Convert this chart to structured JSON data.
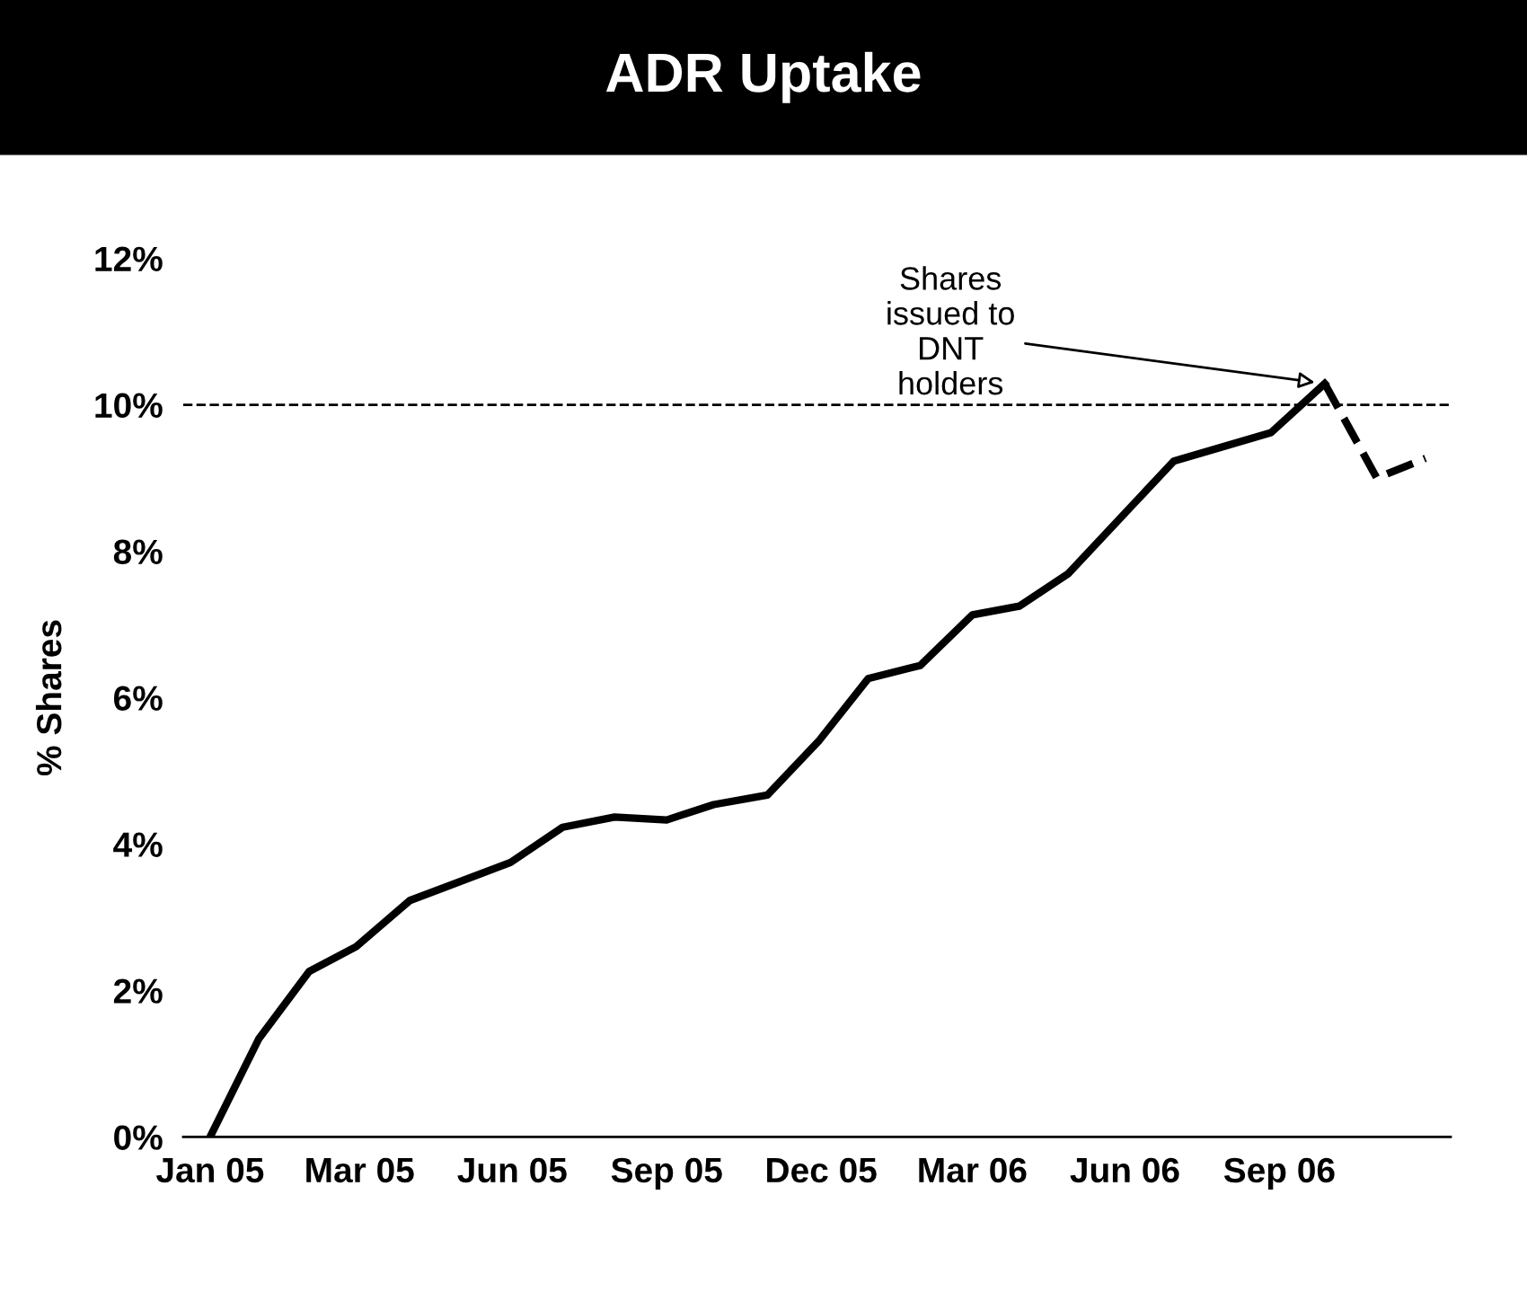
{
  "chart_data": {
    "type": "line",
    "title": "ADR Uptake",
    "ylabel": "% Shares",
    "xlim": [
      "2004-12-16",
      "2007-01-10"
    ],
    "xticks": [
      {
        "value": "2005-01-01",
        "label": "Jan 05"
      },
      {
        "value": "2005-03-31",
        "label": "Mar 05"
      },
      {
        "value": "2005-06-30",
        "label": "Jun 05"
      },
      {
        "value": "2005-09-30",
        "label": "Sep 05"
      },
      {
        "value": "2005-12-31",
        "label": "Dec 05"
      },
      {
        "value": "2006-03-31",
        "label": "Mar 06"
      },
      {
        "value": "2006-06-30",
        "label": "Jun 06"
      },
      {
        "value": "2006-09-30",
        "label": "Sep 06"
      }
    ],
    "ylim": [
      0,
      12
    ],
    "yticks": [
      {
        "value": 0,
        "label": "0%"
      },
      {
        "value": 2,
        "label": "2%"
      },
      {
        "value": 4,
        "label": "4%"
      },
      {
        "value": 6,
        "label": "6%"
      },
      {
        "value": 8,
        "label": "8%"
      },
      {
        "value": 10,
        "label": "10%"
      },
      {
        "value": 12,
        "label": "12%"
      }
    ],
    "series": [
      {
        "color": "#000000",
        "line_style": "solid",
        "x": [
          "2005-01-01",
          "2005-01-30",
          "2005-03-01",
          "2005-03-29",
          "2005-04-30",
          "2005-06-29",
          "2005-07-30",
          "2005-08-30",
          "2005-09-30",
          "2005-10-28",
          "2005-11-29",
          "2005-12-30",
          "2006-01-28",
          "2006-02-28",
          "2006-03-31",
          "2006-04-28",
          "2006-05-27",
          "2006-07-29",
          "2006-09-25",
          "2006-10-27"
        ],
        "values": [
          0,
          1.34,
          2.26,
          2.6,
          3.23,
          3.75,
          4.23,
          4.37,
          4.33,
          4.54,
          4.67,
          5.42,
          6.26,
          6.44,
          7.13,
          7.25,
          7.69,
          9.23,
          9.62,
          10.29
        ]
      },
      {
        "color": "#000000",
        "line_style": "dashed",
        "x": [
          "2006-10-27",
          "2006-11-27",
          "2006-12-26"
        ],
        "values": [
          10.29,
          9.0,
          9.27
        ]
      }
    ],
    "ref_lines": [
      {
        "axis": "y",
        "value": 10,
        "color": "#000000",
        "line_style": "dashed"
      }
    ],
    "annotations": [
      {
        "text": "Shares\nissued to\nDNT\nholders",
        "x": "2006-10-27",
        "y": 10.29
      }
    ],
    "grid": false,
    "legend": false,
    "marker": "none"
  }
}
